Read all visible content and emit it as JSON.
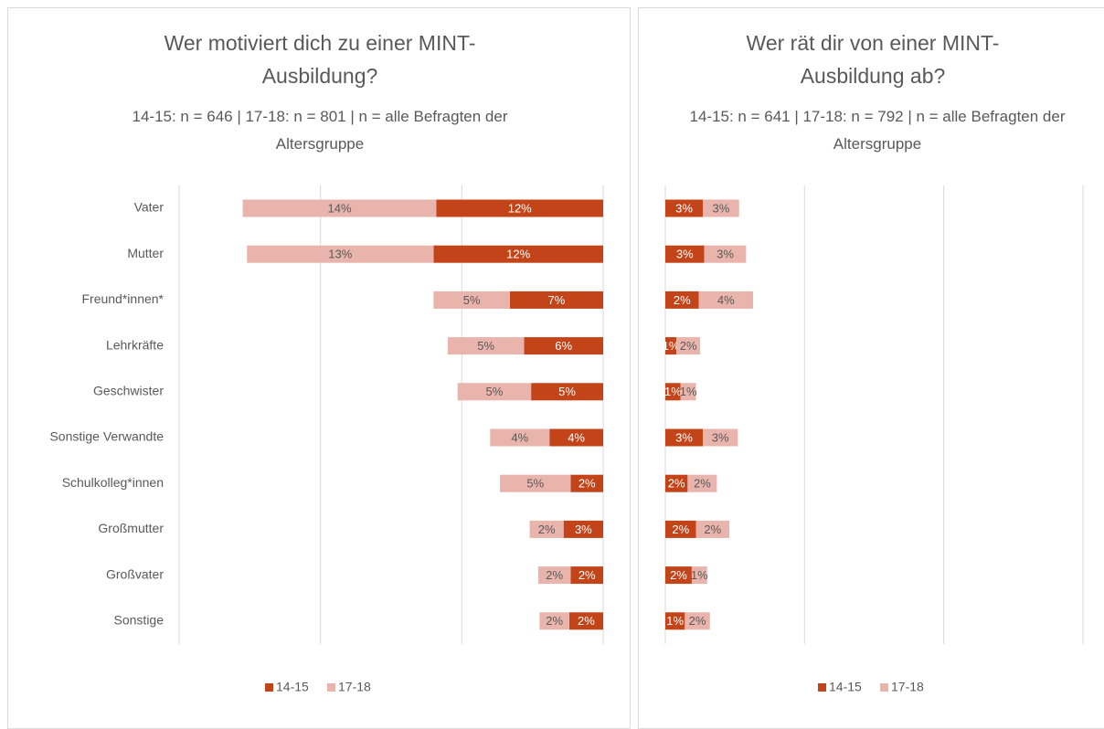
{
  "chart_data": [
    {
      "type": "bar",
      "title": "Wer motiviert dich zu einer MINT-Ausbildung?",
      "subtitle": "14-15: n = 646 | 17-18: n = 801 | n = alle Befragten der Altersgruppe",
      "categories": [
        "Vater",
        "Mutter",
        "Freund*innen*",
        "Lehrkräfte",
        "Geschwister",
        "Sonstige Verwandte",
        "Schulkolleg*innen",
        "Großmutter",
        "Großvater",
        "Sonstige"
      ],
      "series": [
        {
          "name": "14-15",
          "color": "#c4441a",
          "values": [
            11.8,
            12.0,
            6.6,
            5.6,
            5.1,
            3.8,
            2.3,
            2.8,
            2.3,
            2.4
          ],
          "value_labels": [
            "12%",
            "12%",
            "7%",
            "6%",
            "5%",
            "4%",
            "2%",
            "3%",
            "2%",
            "2%"
          ]
        },
        {
          "name": "17-18",
          "color": "#e8b4ac",
          "values": [
            13.7,
            13.2,
            5.4,
            5.4,
            5.2,
            4.2,
            5.0,
            2.4,
            2.3,
            2.1
          ],
          "value_labels": [
            "14%",
            "13%",
            "5%",
            "5%",
            "5%",
            "4%",
            "5%",
            "2%",
            "2%",
            "2%"
          ]
        }
      ],
      "xlim": [
        0,
        30
      ],
      "xticks": [
        0,
        10,
        20,
        30
      ],
      "x_reversed": true,
      "grid": true,
      "legend": "bottom"
    },
    {
      "type": "bar",
      "title": "Wer rät dir von einer MINT-Ausbildung ab?",
      "subtitle": "14-15: n = 641 | 17-18: n = 792 | n = alle Befragten der Altersgruppe",
      "series": [
        {
          "name": "14-15",
          "color": "#c4441a",
          "values": [
            2.7,
            2.8,
            2.4,
            0.8,
            1.1,
            2.7,
            1.6,
            2.2,
            1.9,
            1.4
          ],
          "value_labels": [
            "3%",
            "3%",
            "2%",
            "1%",
            "1%",
            "3%",
            "2%",
            "2%",
            "2%",
            "1%"
          ]
        },
        {
          "name": "17-18",
          "color": "#e8b4ac",
          "values": [
            2.6,
            3.0,
            3.9,
            1.7,
            1.1,
            2.5,
            2.1,
            2.4,
            1.1,
            1.8
          ],
          "value_labels": [
            "3%",
            "3%",
            "4%",
            "2%",
            "1%",
            "3%",
            "2%",
            "2%",
            "1%",
            "2%"
          ]
        }
      ],
      "xlim": [
        0,
        30
      ],
      "xticks": [
        0,
        10,
        20,
        30
      ],
      "x_reversed": false,
      "grid": true,
      "legend": "bottom"
    }
  ]
}
